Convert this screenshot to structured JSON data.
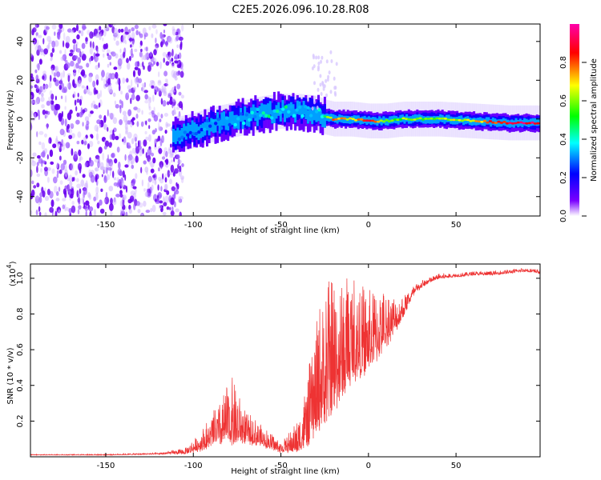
{
  "title": "C2E5.2026.096.10.28.R08",
  "colors": {
    "snr_line": "#ee3333",
    "axis": "#000000",
    "background": "#ffffff"
  },
  "chart_data": [
    {
      "type": "heatmap",
      "title": "C2E5.2026.096.10.28.R08",
      "xlabel": "Height of straight line (km)",
      "ylabel": "Frequency (Hz)",
      "xlim": [
        -193,
        98
      ],
      "ylim": [
        -50,
        49
      ],
      "xticks": [
        -150,
        -100,
        -50,
        0,
        50
      ],
      "yticks": [
        -40,
        -20,
        0,
        20,
        40
      ],
      "x_tick_labels": [
        "-150",
        "-100",
        "-50",
        "0",
        "50"
      ],
      "y_tick_labels": [
        "-40",
        "-20",
        "0",
        "20",
        "40"
      ],
      "ridge": {
        "x": [
          -110,
          -100,
          -90,
          -80,
          -70,
          -60,
          -50,
          -40,
          -30,
          -25,
          -20,
          -10,
          0,
          10,
          20,
          40,
          60,
          80,
          98
        ],
        "center_hz": [
          -8,
          -6,
          -3,
          -1,
          1,
          3,
          4,
          4,
          3,
          1,
          0,
          0,
          -1,
          -1,
          0,
          0,
          -1,
          -2,
          -2
        ],
        "amplitude": [
          0.2,
          0.25,
          0.3,
          0.3,
          0.35,
          0.4,
          0.4,
          0.4,
          0.35,
          0.45,
          0.8,
          0.65,
          0.85,
          0.55,
          0.6,
          0.6,
          0.7,
          0.9,
          0.9
        ]
      },
      "noise_region_x": [
        -193,
        -110
      ]
    },
    {
      "type": "colorbar",
      "label": "Normalized spectral amplitude",
      "range": [
        0,
        1
      ],
      "ticks": [
        0.0,
        0.2,
        0.4,
        0.6,
        0.8
      ],
      "tick_labels": [
        "0.0",
        "0.2",
        "0.4",
        "0.6",
        "0.8"
      ],
      "colormap": [
        "#ffffff",
        "#7a00ff",
        "#0000ff",
        "#00ffff",
        "#00ff00",
        "#ffff00",
        "#ff0000",
        "#ff00aa"
      ]
    },
    {
      "type": "line",
      "title": "",
      "xlabel": "Height of straight line (km)",
      "ylabel": "SNR (10 * v/v)",
      "scale_label": "(x10",
      "scale_exp": "4",
      "scale_close": ")",
      "xlim": [
        -193,
        98
      ],
      "ylim": [
        0,
        1.08
      ],
      "xticks": [
        -150,
        -100,
        -50,
        0,
        50
      ],
      "yticks": [
        0.2,
        0.4,
        0.6,
        0.8,
        1.0
      ],
      "x_tick_labels": [
        "-150",
        "-100",
        "-50",
        "0",
        "50"
      ],
      "y_tick_labels": [
        "0.2",
        "0.4",
        "0.6",
        "0.8",
        "1.0"
      ],
      "series": [
        {
          "name": "SNR",
          "envelope_x": [
            -193,
            -150,
            -120,
            -105,
            -95,
            -85,
            -78,
            -70,
            -60,
            -50,
            -40,
            -35,
            -30,
            -25,
            -20,
            -15,
            -10,
            -5,
            0,
            5,
            10,
            15,
            20,
            25,
            30,
            35,
            40,
            50,
            60,
            70,
            80,
            90,
            98
          ],
          "base": [
            0.01,
            0.01,
            0.015,
            0.02,
            0.05,
            0.1,
            0.12,
            0.1,
            0.07,
            0.03,
            0.05,
            0.1,
            0.2,
            0.3,
            0.35,
            0.42,
            0.48,
            0.5,
            0.55,
            0.6,
            0.66,
            0.72,
            0.8,
            0.9,
            0.95,
            0.98,
            1.0,
            1.01,
            1.02,
            1.02,
            1.03,
            1.04,
            1.03
          ],
          "spike": [
            0.003,
            0.004,
            0.006,
            0.02,
            0.08,
            0.15,
            0.25,
            0.12,
            0.08,
            0.04,
            0.12,
            0.25,
            0.4,
            0.55,
            0.5,
            0.45,
            0.42,
            0.35,
            0.3,
            0.28,
            0.22,
            0.15,
            0.08,
            0.04,
            0.03,
            0.02,
            0.02,
            0.015,
            0.015,
            0.015,
            0.015,
            0.015,
            0.015
          ]
        }
      ]
    }
  ]
}
